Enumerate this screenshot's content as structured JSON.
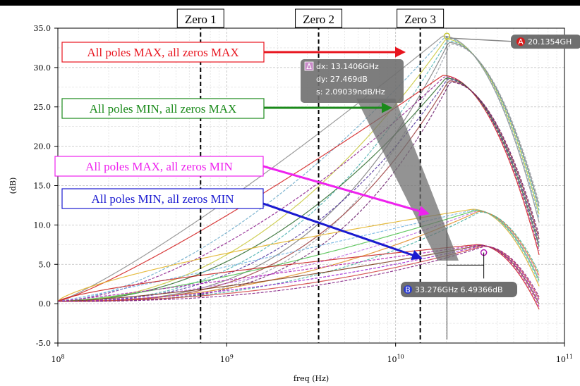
{
  "chart_data": {
    "type": "line",
    "title": "",
    "xlabel": "freq (Hz)",
    "ylabel": "(dB)",
    "xscale": "log",
    "xlim": [
      100000000,
      100000000000
    ],
    "ylim": [
      -5,
      35
    ],
    "grid": true,
    "x_ticks": [
      "10^8",
      "10^9",
      "10^10",
      "10^11"
    ],
    "y_ticks": [
      "-5.0",
      "0.0",
      "5.0",
      "10.0",
      "15.0",
      "20.0",
      "25.0",
      "30.0",
      "35.0"
    ],
    "zero_lines": [
      {
        "label": "Zero 1",
        "x": 700000000
      },
      {
        "label": "Zero 2",
        "x": 3500000000
      },
      {
        "label": "Zero 3",
        "x": 14000000000
      }
    ],
    "groups": [
      {
        "label": "All poles MAX, all zeros MAX",
        "color": "#e8141e",
        "peak_f": 20000000000,
        "peak_db": 34.0,
        "rolloff": 1.6,
        "shoulder": 0,
        "colors": [
          "#8a8a8a",
          "#6aa9c9",
          "#c8c83a",
          "#4ab0b0",
          "#7a7a7a",
          "#9aa0a8"
        ]
      },
      {
        "label": "All poles MIN, all zeros MAX",
        "color": "#1a8a1a",
        "peak_f": 20000000000,
        "peak_db": 29.0,
        "rolloff": 1.35,
        "shoulder": 0,
        "colors": [
          "#d11a1a",
          "#8b1a8b",
          "#2a6a2a",
          "#4a2a9a",
          "#9a3a3a",
          "#6a1a6a"
        ]
      },
      {
        "label": "All poles MAX, all zeros MIN",
        "color": "#ee22ee",
        "peak_f": 30000000000,
        "peak_db": 12.0,
        "rolloff": 0.7,
        "shoulder": 9.2,
        "colors": [
          "#e0b020",
          "#6ab0e0",
          "#4ac04a",
          "#c06ae0",
          "#e08a20",
          "#40b0a0"
        ]
      },
      {
        "label": "All poles MIN, all zeros MIN",
        "color": "#1a1ad0",
        "peak_f": 32000000000,
        "peak_db": 7.5,
        "rolloff": 0.55,
        "shoulder": 4.8,
        "colors": [
          "#c81a1a",
          "#b01ab0",
          "#7a3a1a",
          "#9a1ad0",
          "#d04040",
          "#801a80"
        ]
      }
    ],
    "markers": [
      {
        "id": "A",
        "label": "20.1354GH",
        "x": 20135400000,
        "y": 34.0
      },
      {
        "id": "B",
        "label": "33.276GHz 6.49366dB",
        "x": 33276000000,
        "y": 6.49366
      }
    ],
    "delta_box": {
      "icon": "Δ",
      "lines": [
        "dx: 13.1406GHz",
        "dy: 27.469dB",
        "s: 2.09039ndB/Hz"
      ]
    }
  }
}
